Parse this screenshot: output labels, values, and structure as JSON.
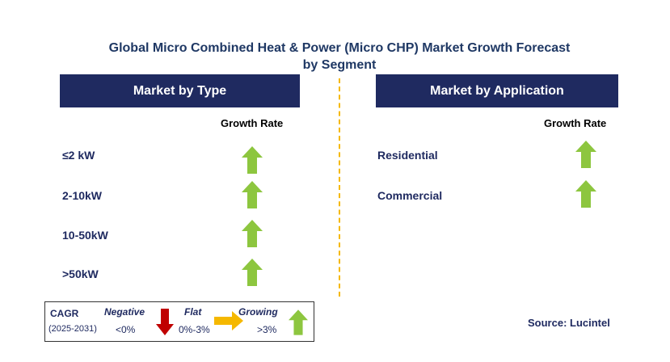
{
  "title": {
    "line1": "Global Micro Combined Heat & Power (Micro CHP) Market Growth Forecast",
    "line2": "by Segment"
  },
  "left_panel": {
    "header": "Market by Type",
    "growth_rate_label": "Growth Rate",
    "items": [
      {
        "label": "≤2 kW",
        "trend": "growing"
      },
      {
        "label": "2-10kW",
        "trend": "growing"
      },
      {
        "label": "10-50kW",
        "trend": "growing"
      },
      {
        "label": ">50kW",
        "trend": "growing"
      }
    ]
  },
  "right_panel": {
    "header": "Market by Application",
    "growth_rate_label": "Growth Rate",
    "items": [
      {
        "label": "Residential",
        "trend": "growing"
      },
      {
        "label": "Commercial",
        "trend": "growing"
      }
    ]
  },
  "legend": {
    "cagr_label": "CAGR",
    "period": "(2025-2031)",
    "negative_label": "Negative",
    "negative_range": "<0%",
    "flat_label": "Flat",
    "flat_range": "0%-3%",
    "growing_label": "Growing",
    "growing_range": ">3%"
  },
  "source": "Source: Lucintel",
  "colors": {
    "header_bg": "#1f2a60",
    "growing": "#8dc63f",
    "negative": "#c00000",
    "flat": "#f5b800",
    "divider": "#f5b800"
  },
  "icons": {
    "growing": "up-arrow-icon",
    "negative": "down-arrow-icon",
    "flat": "right-arrow-icon"
  }
}
